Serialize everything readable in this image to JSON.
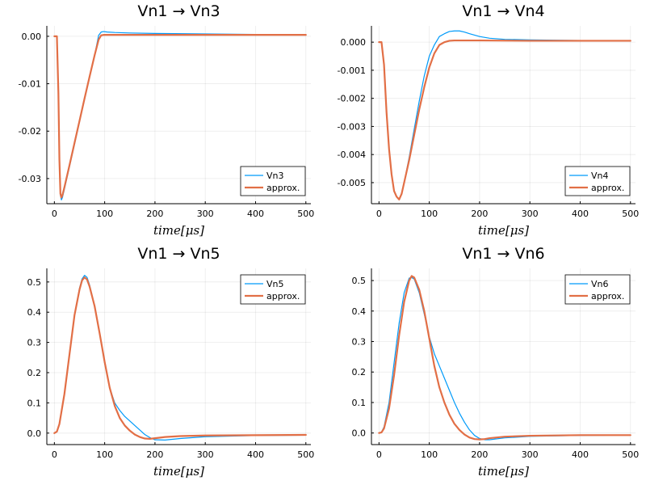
{
  "chart_data": [
    {
      "type": "line",
      "title": "Vn1 → Vn3",
      "xlabel": "time[μs]",
      "ylabel": "",
      "xlim": [
        -15,
        510
      ],
      "ylim": [
        -0.0353,
        0.0022
      ],
      "xticks": [
        0,
        100,
        200,
        300,
        400,
        500
      ],
      "yticks": [
        0.0,
        -0.01,
        -0.02,
        -0.03
      ],
      "ytick_labels": [
        "0.00",
        "-0.01",
        "-0.02",
        "-0.03"
      ],
      "grid": true,
      "legend_position": "bottom-right",
      "series": [
        {
          "name": "Vn3",
          "color": "#009af9",
          "width": 1.2,
          "x": [
            0,
            5,
            8,
            10,
            12,
            14,
            16,
            20,
            30,
            40,
            50,
            60,
            70,
            80,
            88,
            93,
            98,
            105,
            120,
            150,
            200,
            300,
            400,
            500
          ],
          "y": [
            0.0,
            0.0,
            -0.012,
            -0.026,
            -0.0335,
            -0.0345,
            -0.034,
            -0.0322,
            -0.0275,
            -0.0228,
            -0.018,
            -0.0133,
            -0.0086,
            -0.004,
            0.0002,
            0.0009,
            0.001,
            0.0009,
            0.0008,
            0.0007,
            0.0006,
            0.0005,
            0.0004,
            0.0003
          ]
        },
        {
          "name": "approx.",
          "color": "#e26f46",
          "width": 2.2,
          "x": [
            0,
            5,
            8,
            10,
            12,
            14,
            16,
            20,
            30,
            40,
            50,
            60,
            70,
            80,
            88,
            93,
            98,
            105,
            120,
            200,
            300,
            400,
            500
          ],
          "y": [
            0.0,
            0.0,
            -0.012,
            -0.026,
            -0.0332,
            -0.034,
            -0.0335,
            -0.0318,
            -0.0272,
            -0.0225,
            -0.0178,
            -0.0131,
            -0.0085,
            -0.004,
            -0.0007,
            0.0002,
            0.0003,
            0.0003,
            0.0003,
            0.0003,
            0.0003,
            0.0003,
            0.0003
          ]
        }
      ]
    },
    {
      "type": "line",
      "title": "Vn1 → Vn4",
      "xlabel": "time[μs]",
      "ylabel": "",
      "xlim": [
        -15,
        510
      ],
      "ylim": [
        -0.00575,
        0.00058
      ],
      "xticks": [
        0,
        100,
        200,
        300,
        400,
        500
      ],
      "yticks": [
        0.0,
        -0.001,
        -0.002,
        -0.003,
        -0.004,
        -0.005
      ],
      "ytick_labels": [
        "0.000",
        "-0.001",
        "-0.002",
        "-0.003",
        "-0.004",
        "-0.005"
      ],
      "grid": true,
      "legend_position": "bottom-right",
      "series": [
        {
          "name": "Vn4",
          "color": "#009af9",
          "width": 1.2,
          "x": [
            0,
            5,
            10,
            15,
            20,
            25,
            30,
            35,
            40,
            45,
            50,
            60,
            70,
            80,
            90,
            100,
            110,
            120,
            130,
            140,
            150,
            160,
            170,
            180,
            190,
            200,
            220,
            250,
            300,
            400,
            500
          ],
          "y": [
            0.0,
            0.0,
            -0.0008,
            -0.0025,
            -0.0038,
            -0.0047,
            -0.0053,
            -0.0055,
            -0.0056,
            -0.0054,
            -0.005,
            -0.0041,
            -0.0031,
            -0.0021,
            -0.0012,
            -0.0005,
            -0.0001,
            0.0002,
            0.0003,
            0.00038,
            0.0004,
            0.0004,
            0.00036,
            0.0003,
            0.00025,
            0.0002,
            0.00014,
            0.0001,
            8e-05,
            6e-05,
            5e-05
          ]
        },
        {
          "name": "approx.",
          "color": "#e26f46",
          "width": 2.2,
          "x": [
            0,
            5,
            10,
            15,
            20,
            25,
            30,
            35,
            40,
            45,
            50,
            60,
            70,
            80,
            90,
            100,
            110,
            120,
            130,
            140,
            150,
            170,
            200,
            300,
            400,
            500
          ],
          "y": [
            0.0,
            0.0,
            -0.0008,
            -0.0025,
            -0.0038,
            -0.0047,
            -0.0053,
            -0.0055,
            -0.0056,
            -0.0054,
            -0.005,
            -0.0042,
            -0.0033,
            -0.0024,
            -0.0016,
            -0.0009,
            -0.0004,
            -0.0001,
            0.0,
            5e-05,
            6e-05,
            6e-05,
            6e-05,
            5e-05,
            5e-05,
            5e-05
          ]
        }
      ]
    },
    {
      "type": "line",
      "title": "Vn1 → Vn5",
      "xlabel": "time[μs]",
      "ylabel": "",
      "xlim": [
        -15,
        510
      ],
      "ylim": [
        -0.038,
        0.545
      ],
      "xticks": [
        0,
        100,
        200,
        300,
        400,
        500
      ],
      "yticks": [
        0.0,
        0.1,
        0.2,
        0.3,
        0.4,
        0.5
      ],
      "ytick_labels": [
        "0.0",
        "0.1",
        "0.2",
        "0.3",
        "0.4",
        "0.5"
      ],
      "grid": true,
      "legend_position": "top-right",
      "series": [
        {
          "name": "Vn5",
          "color": "#009af9",
          "width": 1.2,
          "x": [
            0,
            5,
            10,
            20,
            30,
            40,
            50,
            55,
            60,
            65,
            70,
            80,
            90,
            100,
            110,
            120,
            130,
            140,
            150,
            160,
            170,
            180,
            190,
            200,
            220,
            250,
            300,
            400,
            500
          ],
          "y": [
            0.0,
            0.005,
            0.03,
            0.13,
            0.26,
            0.39,
            0.48,
            0.51,
            0.522,
            0.515,
            0.49,
            0.42,
            0.33,
            0.23,
            0.15,
            0.1,
            0.075,
            0.055,
            0.04,
            0.025,
            0.01,
            -0.005,
            -0.015,
            -0.022,
            -0.023,
            -0.018,
            -0.012,
            -0.008,
            -0.007
          ]
        },
        {
          "name": "approx.",
          "color": "#e26f46",
          "width": 2.2,
          "x": [
            0,
            5,
            10,
            20,
            30,
            40,
            50,
            55,
            60,
            65,
            70,
            80,
            90,
            100,
            110,
            120,
            130,
            140,
            150,
            160,
            170,
            180,
            190,
            200,
            220,
            250,
            300,
            400,
            500
          ],
          "y": [
            0.0,
            0.005,
            0.03,
            0.13,
            0.26,
            0.39,
            0.475,
            0.505,
            0.515,
            0.508,
            0.485,
            0.42,
            0.33,
            0.235,
            0.15,
            0.09,
            0.05,
            0.025,
            0.008,
            -0.005,
            -0.013,
            -0.018,
            -0.019,
            -0.017,
            -0.013,
            -0.01,
            -0.008,
            -0.007,
            -0.006
          ]
        }
      ]
    },
    {
      "type": "line",
      "title": "Vn1 → Vn6",
      "xlabel": "time[μs]",
      "ylabel": "",
      "xlim": [
        -15,
        510
      ],
      "ylim": [
        -0.038,
        0.54
      ],
      "xticks": [
        0,
        100,
        200,
        300,
        400,
        500
      ],
      "yticks": [
        0.0,
        0.1,
        0.2,
        0.3,
        0.4,
        0.5
      ],
      "ytick_labels": [
        "0.0",
        "0.1",
        "0.2",
        "0.3",
        "0.4",
        "0.5"
      ],
      "grid": true,
      "legend_position": "top-right",
      "series": [
        {
          "name": "Vn6",
          "color": "#009af9",
          "width": 1.2,
          "x": [
            0,
            5,
            10,
            20,
            30,
            40,
            50,
            60,
            65,
            70,
            80,
            90,
            100,
            110,
            120,
            130,
            140,
            150,
            160,
            170,
            180,
            190,
            200,
            210,
            220,
            250,
            300,
            400,
            500
          ],
          "y": [
            0.0,
            0.003,
            0.02,
            0.1,
            0.23,
            0.36,
            0.46,
            0.508,
            0.51,
            0.505,
            0.46,
            0.39,
            0.315,
            0.26,
            0.22,
            0.18,
            0.14,
            0.1,
            0.065,
            0.035,
            0.01,
            -0.008,
            -0.018,
            -0.022,
            -0.022,
            -0.016,
            -0.011,
            -0.008,
            -0.007
          ]
        },
        {
          "name": "approx.",
          "color": "#e26f46",
          "width": 2.2,
          "x": [
            0,
            5,
            10,
            20,
            30,
            40,
            50,
            60,
            65,
            70,
            80,
            90,
            100,
            110,
            120,
            130,
            140,
            150,
            160,
            170,
            180,
            190,
            200,
            210,
            220,
            250,
            300,
            400,
            500
          ],
          "y": [
            0.0,
            0.002,
            0.015,
            0.08,
            0.19,
            0.32,
            0.43,
            0.5,
            0.515,
            0.51,
            0.47,
            0.4,
            0.31,
            0.22,
            0.15,
            0.1,
            0.06,
            0.03,
            0.01,
            -0.005,
            -0.015,
            -0.02,
            -0.021,
            -0.02,
            -0.017,
            -0.012,
            -0.009,
            -0.007,
            -0.007
          ]
        }
      ]
    }
  ]
}
